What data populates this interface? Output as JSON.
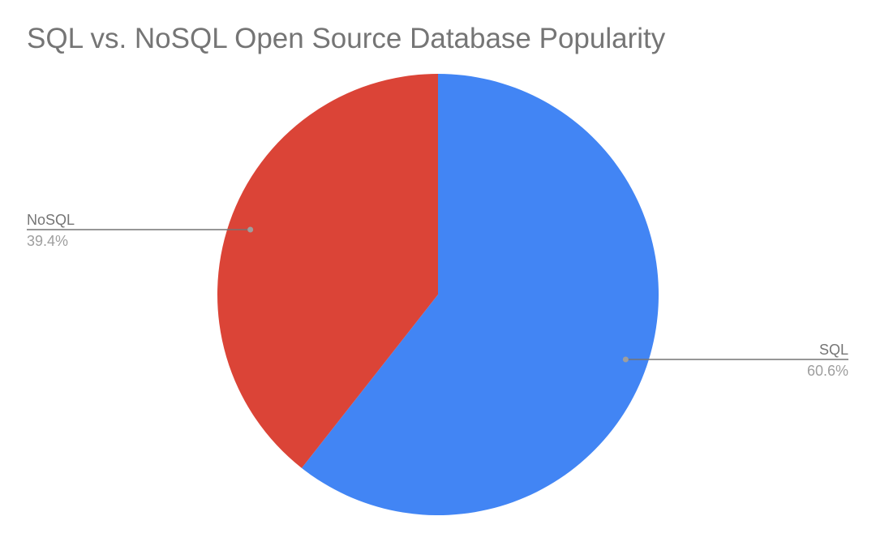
{
  "chart_data": {
    "type": "pie",
    "title": "SQL vs. NoSQL Open Source Database Popularity",
    "start_angle_deg": 0,
    "direction": "clockwise",
    "legend": "none",
    "slices": [
      {
        "label": "SQL",
        "value": 60.6,
        "value_label": "60.6%",
        "color": "#4285f4"
      },
      {
        "label": "NoSQL",
        "value": 39.4,
        "value_label": "39.4%",
        "color": "#db4437"
      }
    ]
  }
}
